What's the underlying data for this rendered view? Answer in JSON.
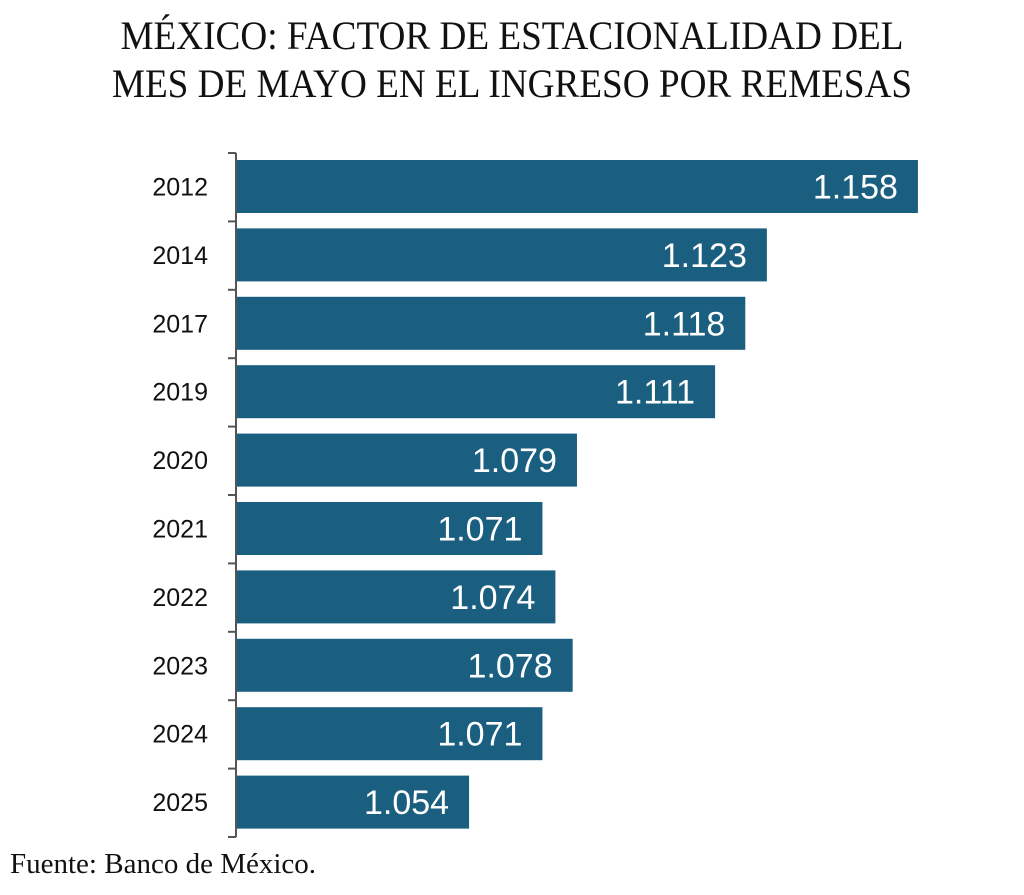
{
  "chart_data": {
    "type": "bar",
    "orientation": "horizontal",
    "title": "MÉXICO: FACTOR DE ESTACIONALIDAD DEL MES DE MAYO EN EL INGRESO POR REMESAS",
    "title_lines": [
      "MÉXICO: FACTOR DE ESTACIONALIDAD DEL",
      "MES DE MAYO EN EL INGRESO POR REMESAS"
    ],
    "categories": [
      "2012",
      "2014",
      "2017",
      "2019",
      "2020",
      "2021",
      "2022",
      "2023",
      "2024",
      "2025"
    ],
    "values": [
      1.158,
      1.123,
      1.118,
      1.111,
      1.079,
      1.071,
      1.074,
      1.078,
      1.071,
      1.054
    ],
    "data_labels": [
      "1.158",
      "1.123",
      "1.118",
      "1.111",
      "1.079",
      "1.071",
      "1.074",
      "1.078",
      "1.071",
      "1.054"
    ],
    "xlabel": "",
    "ylabel": "",
    "xlim": [
      1.0,
      1.17
    ],
    "grid": false,
    "legend": "none",
    "bar_color": "#1a5e80",
    "source": "Fuente: Banco de México."
  }
}
